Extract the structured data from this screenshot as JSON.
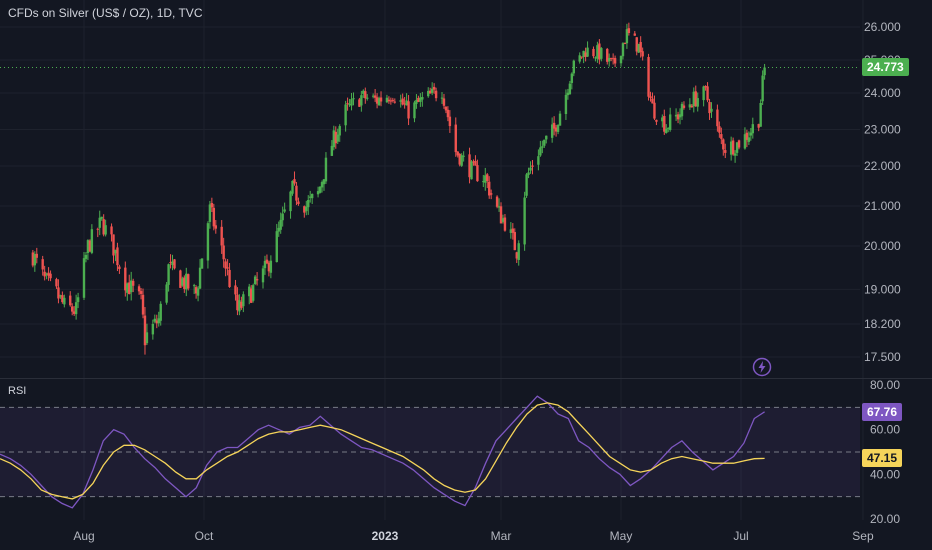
{
  "title": "CFDs on Silver (US$ / OZ), 1D, TVC",
  "rsi_label": "RSI",
  "price_tag": "24.773",
  "rsi_tag": "67.76",
  "rsi_ma_tag": "47.15",
  "colors": {
    "background": "#131722",
    "up": "#26a69a",
    "up_candle": "#4caf50",
    "down": "#ef5350",
    "rsi_line": "#7e57c2",
    "rsi_ma": "#f5d45a",
    "rsi_band": "#7e57c2",
    "grid": "#1e222d",
    "text": "#b2b5be"
  },
  "icons": {
    "alert": "lightning-bolt-icon"
  },
  "chart_data": [
    {
      "type": "candlestick",
      "title": "CFDs on Silver (US$ / OZ), 1D, TVC",
      "y_ticks": [
        "26.000",
        "25.000",
        "24.000",
        "23.000",
        "22.000",
        "21.000",
        "20.000",
        "19.000",
        "18.200",
        "17.500"
      ],
      "x_ticks": [
        "Aug",
        "Oct",
        "2023",
        "Mar",
        "May",
        "Jul",
        "Sep"
      ],
      "ylim": [
        17.2,
        26.4
      ],
      "last_value": 24.773,
      "close_path": {
        "dates": [
          "2022-07-06",
          "2022-07-12",
          "2022-07-18",
          "2022-07-22",
          "2022-07-28",
          "2022-08-03",
          "2022-08-10",
          "2022-08-15",
          "2022-08-22",
          "2022-08-30",
          "2022-09-01",
          "2022-09-08",
          "2022-09-13",
          "2022-09-20",
          "2022-09-27",
          "2022-10-04",
          "2022-10-10",
          "2022-10-18",
          "2022-10-26",
          "2022-11-02",
          "2022-11-09",
          "2022-11-15",
          "2022-11-22",
          "2022-11-28",
          "2022-12-05",
          "2022-12-12",
          "2022-12-20",
          "2022-12-28",
          "2023-01-05",
          "2023-01-13",
          "2023-01-20",
          "2023-01-30",
          "2023-02-06",
          "2023-02-14",
          "2023-02-21",
          "2023-02-27",
          "2023-03-03",
          "2023-03-09",
          "2023-03-14",
          "2023-03-20",
          "2023-03-28",
          "2023-04-03",
          "2023-04-06",
          "2023-04-13",
          "2023-04-20",
          "2023-04-27",
          "2023-05-04",
          "2023-05-10",
          "2023-05-17",
          "2023-05-24",
          "2023-05-30",
          "2023-06-06",
          "2023-06-13",
          "2023-06-20",
          "2023-06-23",
          "2023-06-29",
          "2023-07-05",
          "2023-07-10",
          "2023-07-13"
        ],
        "values": [
          19.8,
          19.2,
          18.9,
          18.6,
          18.5,
          20.0,
          20.6,
          20.1,
          19.2,
          18.7,
          17.9,
          18.3,
          19.5,
          19.2,
          18.9,
          20.9,
          19.9,
          18.5,
          19.0,
          19.5,
          20.5,
          21.4,
          21.0,
          21.3,
          22.6,
          23.5,
          23.9,
          23.8,
          24.0,
          23.5,
          23.8,
          24.1,
          22.4,
          21.9,
          21.7,
          20.9,
          20.6,
          19.9,
          21.7,
          22.4,
          23.0,
          24.0,
          24.7,
          25.3,
          25.2,
          24.8,
          25.8,
          25.4,
          23.6,
          23.1,
          23.4,
          23.8,
          24.0,
          22.8,
          22.5,
          22.6,
          22.9,
          23.3,
          24.8
        ]
      }
    },
    {
      "type": "line",
      "title": "RSI",
      "y_ticks": [
        "80.00",
        "60.00",
        "40.00",
        "20.00"
      ],
      "ylim": [
        20,
        80
      ],
      "bands": [
        30,
        50,
        70
      ],
      "series": [
        {
          "role": "rsi",
          "values": [
            49,
            47,
            44,
            40,
            35,
            30,
            27,
            25,
            31,
            42,
            55,
            60,
            58,
            52,
            47,
            43,
            38,
            34,
            30,
            34,
            44,
            50,
            52,
            52,
            56,
            60,
            62,
            60,
            58,
            61,
            62,
            66,
            62,
            58,
            55,
            52,
            51,
            49,
            47,
            45,
            42,
            38,
            34,
            31,
            28,
            26,
            34,
            45,
            55,
            60,
            65,
            70,
            75,
            72,
            67,
            65,
            55,
            52,
            47,
            43,
            40,
            35,
            38,
            42,
            47,
            52,
            55,
            50,
            46,
            42,
            45,
            48,
            54,
            65,
            68
          ]
        },
        {
          "role": "ma",
          "values": [
            47,
            45,
            42,
            38,
            33,
            31,
            30,
            29,
            31,
            36,
            44,
            50,
            53,
            53,
            51,
            48,
            45,
            41,
            38,
            38,
            42,
            45,
            48,
            50,
            53,
            56,
            58,
            59,
            59,
            60,
            61,
            62,
            61,
            60,
            58,
            56,
            54,
            52,
            50,
            48,
            45,
            42,
            38,
            35,
            33,
            32,
            33,
            38,
            46,
            54,
            61,
            67,
            71,
            72,
            71,
            68,
            63,
            58,
            53,
            48,
            45,
            42,
            41,
            42,
            45,
            47,
            48,
            47,
            46,
            45,
            45,
            45,
            46,
            47,
            47.15
          ]
        }
      ]
    }
  ]
}
